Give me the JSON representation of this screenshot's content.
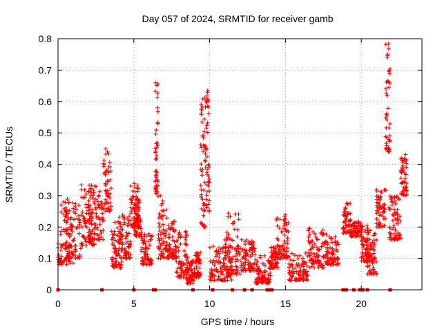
{
  "chart_data": {
    "type": "scatter",
    "title": "Day 057 of 2024, SRMTID for receiver gamb",
    "xlabel": "GPS time / hours",
    "ylabel": "SRMTID / TECUs",
    "xlim": [
      0,
      24
    ],
    "ylim": [
      0,
      0.8
    ],
    "xticks": [
      0,
      5,
      10,
      15,
      20
    ],
    "xtick_labels": [
      "0",
      "5",
      "10",
      "15",
      "20"
    ],
    "yticks": [
      0,
      0.1,
      0.2,
      0.3,
      0.4,
      0.5,
      0.6,
      0.7,
      0.8
    ],
    "ytick_labels": [
      "0",
      "0.1",
      "0.2",
      "0.3",
      "0.4",
      "0.5",
      "0.6",
      "0.7",
      "0.8"
    ],
    "grid": true,
    "marker": "+",
    "series_color": "#ff0000",
    "zero_points_x": [
      0.0,
      2.9,
      5.0,
      6.3,
      6.4,
      8.9,
      10.2,
      11.5,
      12.3,
      12.8,
      13.8,
      14.0,
      14.1,
      18.8,
      19.0,
      19.5,
      19.9,
      20.1,
      20.4,
      21.9
    ],
    "clusters": [
      {
        "x": [
          0.0,
          1.0
        ],
        "y": [
          0.08,
          0.29
        ]
      },
      {
        "x": [
          0.5,
          1.5
        ],
        "y": [
          0.1,
          0.28
        ]
      },
      {
        "x": [
          1.5,
          2.5
        ],
        "y": [
          0.14,
          0.34
        ]
      },
      {
        "x": [
          2.0,
          3.0
        ],
        "y": [
          0.16,
          0.33
        ]
      },
      {
        "x": [
          3.0,
          3.5
        ],
        "y": [
          0.25,
          0.45
        ]
      },
      {
        "x": [
          3.5,
          4.2
        ],
        "y": [
          0.07,
          0.22
        ]
      },
      {
        "x": [
          4.0,
          4.8
        ],
        "y": [
          0.1,
          0.24
        ]
      },
      {
        "x": [
          4.8,
          5.3
        ],
        "y": [
          0.2,
          0.34
        ]
      },
      {
        "x": [
          5.0,
          5.5
        ],
        "y": [
          0.17,
          0.29
        ]
      },
      {
        "x": [
          5.5,
          6.2
        ],
        "y": [
          0.08,
          0.18
        ]
      },
      {
        "x": [
          6.4,
          6.6
        ],
        "y": [
          0.3,
          0.66
        ]
      },
      {
        "x": [
          6.6,
          7.2
        ],
        "y": [
          0.1,
          0.3
        ]
      },
      {
        "x": [
          7.2,
          7.8
        ],
        "y": [
          0.1,
          0.22
        ]
      },
      {
        "x": [
          7.8,
          8.5
        ],
        "y": [
          0.04,
          0.19
        ]
      },
      {
        "x": [
          8.5,
          9.0
        ],
        "y": [
          0.02,
          0.11
        ]
      },
      {
        "x": [
          9.0,
          9.4
        ],
        "y": [
          0.04,
          0.12
        ]
      },
      {
        "x": [
          9.4,
          9.7
        ],
        "y": [
          0.2,
          0.62
        ]
      },
      {
        "x": [
          9.7,
          10.0
        ],
        "y": [
          0.25,
          0.64
        ]
      },
      {
        "x": [
          10.0,
          11.5
        ],
        "y": [
          0.03,
          0.14
        ]
      },
      {
        "x": [
          11.0,
          12.0
        ],
        "y": [
          0.05,
          0.25
        ]
      },
      {
        "x": [
          12.0,
          13.0
        ],
        "y": [
          0.06,
          0.16
        ]
      },
      {
        "x": [
          13.0,
          14.0
        ],
        "y": [
          0.02,
          0.11
        ]
      },
      {
        "x": [
          14.0,
          14.5
        ],
        "y": [
          0.07,
          0.14
        ]
      },
      {
        "x": [
          14.4,
          15.2
        ],
        "y": [
          0.1,
          0.24
        ]
      },
      {
        "x": [
          15.2,
          16.5
        ],
        "y": [
          0.03,
          0.12
        ]
      },
      {
        "x": [
          16.5,
          17.5
        ],
        "y": [
          0.07,
          0.2
        ]
      },
      {
        "x": [
          17.5,
          18.5
        ],
        "y": [
          0.08,
          0.18
        ]
      },
      {
        "x": [
          18.8,
          19.3
        ],
        "y": [
          0.18,
          0.28
        ]
      },
      {
        "x": [
          19.3,
          20.0
        ],
        "y": [
          0.17,
          0.22
        ]
      },
      {
        "x": [
          20.0,
          20.5
        ],
        "y": [
          0.09,
          0.21
        ]
      },
      {
        "x": [
          20.4,
          21.0
        ],
        "y": [
          0.05,
          0.2
        ]
      },
      {
        "x": [
          21.0,
          21.6
        ],
        "y": [
          0.2,
          0.32
        ]
      },
      {
        "x": [
          21.6,
          21.9
        ],
        "y": [
          0.44,
          0.79
        ]
      },
      {
        "x": [
          21.8,
          22.6
        ],
        "y": [
          0.16,
          0.3
        ]
      },
      {
        "x": [
          22.6,
          23.0
        ],
        "y": [
          0.3,
          0.44
        ]
      }
    ]
  }
}
